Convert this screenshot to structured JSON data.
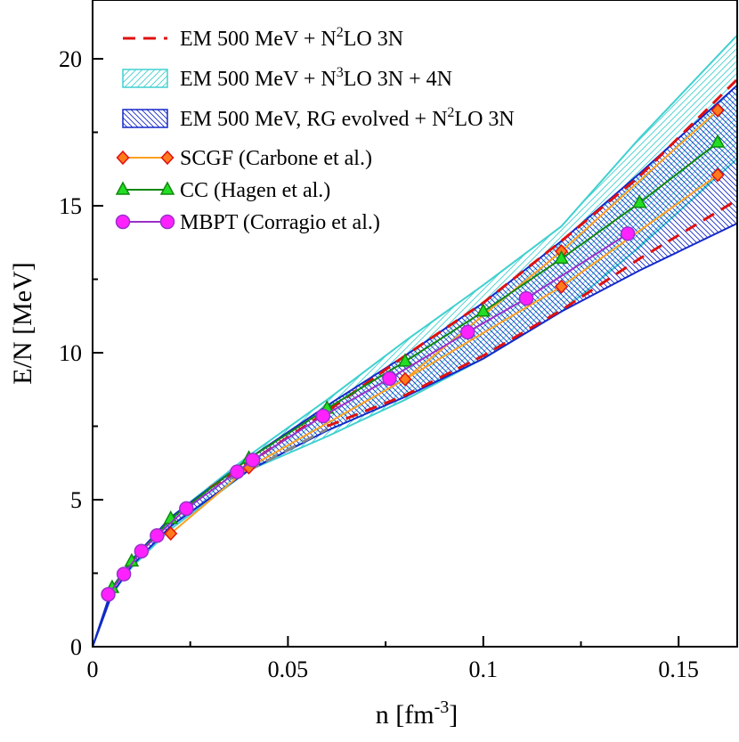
{
  "chart_data": {
    "type": "line",
    "xlabel": "n [fm",
    "xlabel_sup": "-3",
    "xlabel_tail": "]",
    "ylabel": "E/N [MeV]",
    "xlim": [
      0,
      0.165
    ],
    "ylim": [
      0,
      22
    ],
    "x_ticks": [
      0,
      0.05,
      0.1,
      0.15
    ],
    "x_tick_labels": [
      "0",
      "0.05",
      "0.1",
      "0.15"
    ],
    "y_ticks": [
      0,
      5,
      10,
      15,
      20
    ],
    "y_tick_labels": [
      "0",
      "5",
      "10",
      "15",
      "20"
    ],
    "grid": false,
    "legend_position": "top-left",
    "legend": [
      {
        "label": "EM 500 MeV + N",
        "sup": "2",
        "tail": "LO 3N"
      },
      {
        "label": "EM 500 MeV + N",
        "sup": "3",
        "tail": "LO 3N + 4N"
      },
      {
        "label": "EM 500 MeV, RG evolved + N",
        "sup": "2",
        "tail": "LO 3N"
      },
      {
        "label": "SCGF (Carbone et al.)",
        "sup": "",
        "tail": ""
      },
      {
        "label": "CC (Hagen et al.)",
        "sup": "",
        "tail": ""
      },
      {
        "label": "MBPT (Corragio et al.)",
        "sup": "",
        "tail": ""
      }
    ],
    "bands": [
      {
        "name": "EM 500 MeV + N3LO 3N + 4N",
        "color": "#40d0d0",
        "style": "hatch-right",
        "x": [
          0,
          0.005,
          0.01,
          0.02,
          0.04,
          0.06,
          0.08,
          0.1,
          0.12,
          0.14,
          0.165
        ],
        "upper": [
          0,
          2.0,
          2.9,
          4.4,
          6.5,
          8.4,
          10.4,
          12.3,
          14.3,
          17.3,
          20.8
        ],
        "lower": [
          0,
          1.8,
          2.7,
          4.0,
          6.0,
          7.15,
          8.4,
          9.8,
          11.4,
          13.6,
          16.6
        ]
      },
      {
        "name": "EM 500 MeV, RG evolved + N2LO 3N",
        "color": "#1428c8",
        "style": "hatch-left",
        "x": [
          0,
          0.005,
          0.01,
          0.02,
          0.04,
          0.06,
          0.08,
          0.1,
          0.12,
          0.14,
          0.165
        ],
        "upper": [
          0,
          2.0,
          2.95,
          4.4,
          6.4,
          8.2,
          9.9,
          11.7,
          13.8,
          16.1,
          19.1
        ],
        "lower": [
          0,
          1.8,
          2.75,
          4.1,
          6.0,
          7.35,
          8.5,
          9.8,
          11.4,
          12.8,
          14.4
        ]
      }
    ],
    "dashed_series": [
      {
        "name": "EM 500 MeV + N2LO 3N upper",
        "color": "#e01010",
        "x": [
          0.03,
          0.04,
          0.06,
          0.08,
          0.1,
          0.12,
          0.14,
          0.165
        ],
        "y": [
          5.4,
          6.25,
          8.0,
          9.9,
          11.7,
          13.8,
          16.0,
          19.3
        ]
      },
      {
        "name": "EM 500 MeV + N2LO 3N lower",
        "color": "#e01010",
        "x": [
          0.06,
          0.08,
          0.1,
          0.12,
          0.14,
          0.165
        ],
        "y": [
          7.5,
          8.55,
          9.9,
          11.45,
          13.2,
          15.2
        ]
      },
      {
        "name": "EM 500 MeV + N2LO 3N lower (low density)",
        "color": "#888888",
        "x": [
          0.035,
          0.04,
          0.06
        ],
        "y": [
          5.7,
          6.0,
          7.4
        ]
      }
    ],
    "series": [
      {
        "name": "SCGF (Carbone et al.)",
        "color": "#ffa020",
        "marker": "diamond",
        "marker_fill": "#ff7b1c",
        "marker_stroke": "#e01010",
        "x": [
          0.02,
          0.04,
          0.08,
          0.12,
          0.16
        ],
        "y": [
          3.85,
          6.1,
          9.1,
          12.25,
          16.05
        ],
        "upper_y": [
          null,
          null,
          null,
          13.45,
          18.25
        ]
      },
      {
        "name": "CC (Hagen et al.)",
        "color": "#118811",
        "marker": "triangle",
        "marker_fill": "#22dd22",
        "marker_stroke": "#118811",
        "x": [
          0.005,
          0.01,
          0.02,
          0.04,
          0.06,
          0.08,
          0.1,
          0.12,
          0.14,
          0.16
        ],
        "y": [
          2.0,
          2.9,
          4.35,
          6.4,
          8.1,
          9.7,
          11.4,
          13.2,
          15.1,
          17.15
        ]
      },
      {
        "name": "MBPT (Corragio et al.)",
        "color": "#9a30c8",
        "marker": "circle",
        "marker_fill": "#ff22ff",
        "marker_stroke": "#9a30c8",
        "x": [
          0.004,
          0.008,
          0.0125,
          0.0165,
          0.024,
          0.037,
          0.041,
          0.059,
          0.076,
          0.096,
          0.111,
          0.137
        ],
        "y": [
          1.78,
          2.47,
          3.25,
          3.78,
          4.7,
          5.95,
          6.35,
          7.85,
          9.12,
          10.7,
          11.85,
          14.05
        ]
      }
    ]
  }
}
